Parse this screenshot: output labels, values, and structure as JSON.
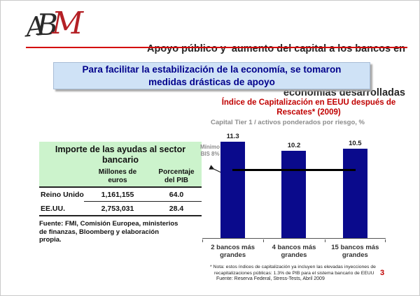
{
  "logo": {
    "letters": [
      "A",
      "B",
      "M"
    ]
  },
  "header": {
    "title_lines": [
      "Apoyo público y  aumento del capital a los bancos en",
      "economías desarrolladas"
    ]
  },
  "message_box": {
    "lines": [
      "Para facilitar la estabilización de la economía, se tomaron",
      "medidas drásticas de apoyo"
    ]
  },
  "aid_table": {
    "title_lines": [
      "Importe de las ayudas al sector",
      "bancario"
    ],
    "col_headers": [
      {
        "lines": [
          "Millones de",
          "euros"
        ]
      },
      {
        "lines": [
          "Porcentaje",
          "del PIB"
        ]
      }
    ],
    "rows": [
      {
        "label": "Reino Unido",
        "millones": "1,161,155",
        "pib": "64.0"
      },
      {
        "label": "EE.UU.",
        "millones": "2,753,031",
        "pib": "28.4"
      }
    ],
    "source_lines": [
      "Fuente: FMI, Comisión Europea, ministerios",
      "de finanzas, Bloomberg y elaboración",
      "propia."
    ]
  },
  "chart_data": {
    "type": "bar",
    "title": "Índice de Capitalización en EEUU después de Rescates* (2009)",
    "title_lines": [
      "Índice de Capitalización en EEUU después de",
      "Rescates* (2009)"
    ],
    "subtitle": "Capital Tier 1 / activos ponderados por riesgo, %",
    "categories": [
      "2 bancos más grandes",
      "4 bancos más grandes",
      "15 bancos más grandes"
    ],
    "values": [
      11.3,
      10.2,
      10.5
    ],
    "ylim": [
      0,
      11.3
    ],
    "grid": false,
    "legend": false,
    "reference_line": {
      "value": 8,
      "label_lines": [
        "Mínimo",
        "BIS 8%"
      ],
      "color": "#000000"
    },
    "colors": {
      "bar": "#0a0a8c",
      "title": "#c00000",
      "subtitle": "#8c8c8c"
    },
    "footnote_lines": [
      "* Nota: estos índices de capitalización ya incluyen las elevadas inyecciones de",
      "recapitalizaciones públicas: 1.3% de PIB para el sistema bancario de EEUU"
    ],
    "source": "Fuente: Reserva Federal, Stress-Tests, Abril 2009"
  },
  "page_number": "3"
}
